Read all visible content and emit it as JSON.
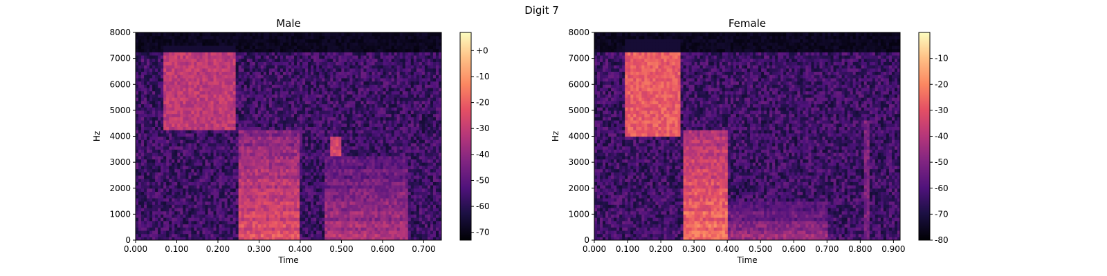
{
  "figure_title": "Digit 7",
  "chart_data": [
    {
      "type": "heatmap",
      "title": "Male",
      "xlabel": "Time",
      "ylabel": "Hz",
      "xlim": [
        0,
        0.743
      ],
      "ylim": [
        0,
        8000
      ],
      "x_ticks": [
        "0.000",
        "0.100",
        "0.200",
        "0.300",
        "0.400",
        "0.500",
        "0.600",
        "0.700"
      ],
      "x_tick_values": [
        0.0,
        0.1,
        0.2,
        0.3,
        0.4,
        0.5,
        0.6,
        0.7
      ],
      "y_ticks": [
        "0",
        "1000",
        "2000",
        "3000",
        "4000",
        "5000",
        "6000",
        "7000",
        "8000"
      ],
      "y_tick_values": [
        0,
        1000,
        2000,
        3000,
        4000,
        5000,
        6000,
        7000,
        8000
      ],
      "colorbar": {
        "colormap": "magma",
        "range": [
          -73,
          7
        ],
        "ticks": [
          "+0",
          "-10",
          "-20",
          "-30",
          "-40",
          "-50",
          "-60",
          "-70"
        ],
        "tick_values": [
          0,
          -10,
          -20,
          -30,
          -40,
          -50,
          -60,
          -70
        ]
      },
      "silence_above_hz": 7300,
      "regions": [
        {
          "t0": 0.07,
          "t1": 0.24,
          "f0": 4300,
          "f1": 7500,
          "level": -25,
          "kind": "fricative"
        },
        {
          "t0": 0.25,
          "t1": 0.4,
          "f0": 0,
          "f1": 4200,
          "level": -15,
          "kind": "voiced"
        },
        {
          "t0": 0.46,
          "t1": 0.66,
          "f0": 0,
          "f1": 3200,
          "level": -25,
          "kind": "voiced"
        },
        {
          "t0": 0.47,
          "t1": 0.5,
          "f0": 3200,
          "f1": 4000,
          "level": -20,
          "kind": "burst"
        }
      ]
    },
    {
      "type": "heatmap",
      "title": "Female",
      "xlabel": "Time",
      "ylabel": "Hz",
      "xlim": [
        0,
        0.92
      ],
      "ylim": [
        0,
        8000
      ],
      "x_ticks": [
        "0.000",
        "0.100",
        "0.200",
        "0.300",
        "0.400",
        "0.500",
        "0.600",
        "0.700",
        "0.800",
        "0.900"
      ],
      "x_tick_values": [
        0.0,
        0.1,
        0.2,
        0.3,
        0.4,
        0.5,
        0.6,
        0.7,
        0.8,
        0.9
      ],
      "y_ticks": [
        "0",
        "1000",
        "2000",
        "3000",
        "4000",
        "5000",
        "6000",
        "7000",
        "8000"
      ],
      "y_tick_values": [
        0,
        1000,
        2000,
        3000,
        4000,
        5000,
        6000,
        7000,
        8000
      ],
      "colorbar": {
        "colormap": "magma",
        "range": [
          -80,
          0
        ],
        "ticks": [
          "-10",
          "-20",
          "-30",
          "-40",
          "-50",
          "-60",
          "-70",
          "-80"
        ],
        "tick_values": [
          -10,
          -20,
          -30,
          -40,
          -50,
          -60,
          -70,
          -80
        ]
      },
      "silence_above_hz": 7300,
      "regions": [
        {
          "t0": 0.09,
          "t1": 0.26,
          "f0": 4000,
          "f1": 7700,
          "level": -22,
          "kind": "fricative"
        },
        {
          "t0": 0.27,
          "t1": 0.4,
          "f0": 0,
          "f1": 4300,
          "level": -15,
          "kind": "voiced"
        },
        {
          "t0": 0.4,
          "t1": 0.7,
          "f0": 0,
          "f1": 1500,
          "level": -35,
          "kind": "voiced"
        },
        {
          "t0": 0.81,
          "t1": 0.83,
          "f0": 0,
          "f1": 4600,
          "level": -45,
          "kind": "burst"
        }
      ]
    }
  ]
}
